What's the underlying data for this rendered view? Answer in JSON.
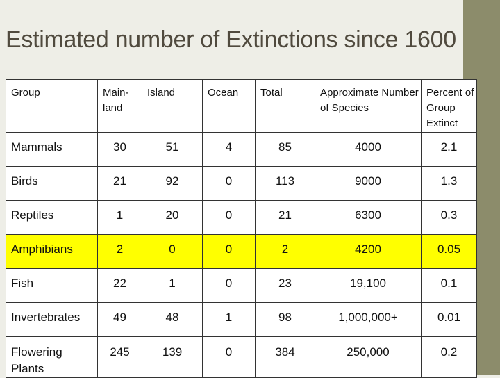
{
  "slide": {
    "title": "Estimated number of Extinctions since 1600"
  },
  "table": {
    "headers": {
      "group": "Group",
      "mainland": "Main-\nland",
      "island": "Island",
      "ocean": "Ocean",
      "total": "Total",
      "approx": "Approximate Number of Species",
      "percent": "Percent of Group Extinct"
    },
    "rows": [
      {
        "group": "Mammals",
        "mainland": "30",
        "island": "51",
        "ocean": "4",
        "total": "85",
        "approx": "4000",
        "percent": "2.1"
      },
      {
        "group": "Birds",
        "mainland": "21",
        "island": "92",
        "ocean": "0",
        "total": "113",
        "approx": "9000",
        "percent": "1.3"
      },
      {
        "group": "Reptiles",
        "mainland": "1",
        "island": "20",
        "ocean": "0",
        "total": "21",
        "approx": "6300",
        "percent": "0.3"
      },
      {
        "group": "Amphibians",
        "mainland": "2",
        "island": "0",
        "ocean": "0",
        "total": "2",
        "approx": "4200",
        "percent": "0.05"
      },
      {
        "group": "Fish",
        "mainland": "22",
        "island": "1",
        "ocean": "0",
        "total": "23",
        "approx": "19,100",
        "percent": "0.1"
      },
      {
        "group": "Invertebrates",
        "mainland": "49",
        "island": "48",
        "ocean": "1",
        "total": "98",
        "approx": "1,000,000+",
        "percent": "0.01"
      },
      {
        "group": "Flowering Plants",
        "mainland": "245",
        "island": "139",
        "ocean": "0",
        "total": "384",
        "approx": "250,000",
        "percent": "0.2"
      }
    ]
  },
  "colors": {
    "background": "#eeeee7",
    "accent_bar": "#8c8c6b",
    "title": "#504a3e",
    "highlight": "#ffff00"
  }
}
